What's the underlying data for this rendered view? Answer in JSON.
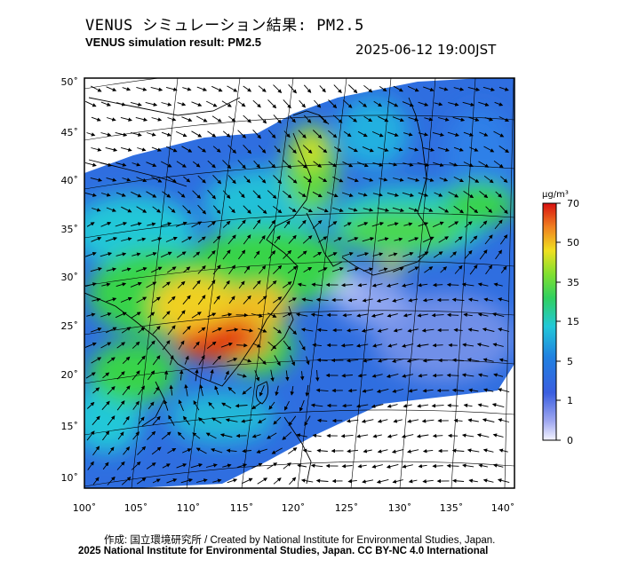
{
  "header": {
    "title_jp": "VENUS シミュレーション結果: PM2.5",
    "title_en": "VENUS simulation result: PM2.5",
    "timestamp": "2025-06-12 19:00JST"
  },
  "map": {
    "lat_labels": [
      "50˚",
      "45˚",
      "40˚",
      "35˚",
      "30˚",
      "25˚",
      "20˚",
      "15˚",
      "10˚"
    ],
    "lon_labels": [
      "100˚",
      "105˚",
      "110˚",
      "115˚",
      "120˚",
      "125˚",
      "130˚",
      "135˚",
      "140˚"
    ],
    "field": "PM2.5 concentration with wind vectors",
    "palette": {
      "zero": "#f2f2ff",
      "one": "#3a6fe0",
      "five": "#24c8d8",
      "fifteen": "#39d44a",
      "thirtyfive": "#f0e020",
      "fifty": "#f08020",
      "seventy": "#d81010"
    }
  },
  "colorbar": {
    "unit": "μg/m³",
    "ticks": [
      "70",
      "50",
      "35",
      "15",
      "5",
      "1",
      "0"
    ]
  },
  "footer": {
    "credit": "作成: 国立環境研究所 / Created by National Institute for Environmental Studies, Japan.",
    "copyright": "2025 National Institute for Environmental Studies, Japan. CC BY-NC 4.0 International"
  }
}
